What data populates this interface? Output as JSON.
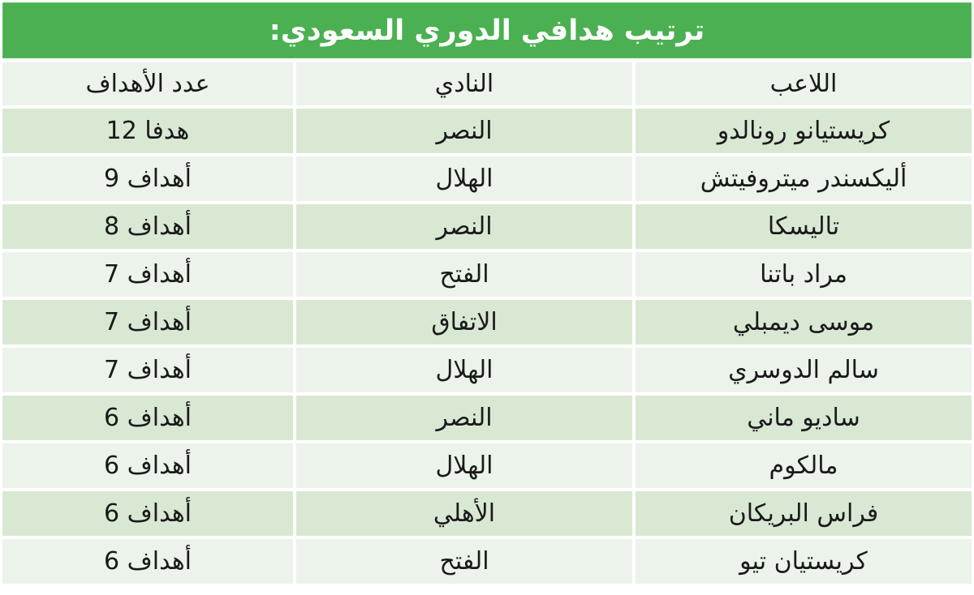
{
  "title": "ترتيب هدافي الدوري السعودي:",
  "colors": {
    "header_green": "#4bb051",
    "row_light": "#ebf3ea",
    "row_dark": "#d9e8d3",
    "title_text": "#ffffff",
    "cell_text": "#1a1a1a"
  },
  "table": {
    "headers": [
      "اللاعب",
      "النادي",
      "عدد الأهداف"
    ],
    "rows": [
      {
        "player": "كريستيانو رونالدو",
        "club": "النصر",
        "goals": "12 هدفا"
      },
      {
        "player": "أليكسندر ميتروفيتش",
        "club": "الهلال",
        "goals": "9 أهداف"
      },
      {
        "player": "تاليسكا",
        "club": "النصر",
        "goals": "8 أهداف"
      },
      {
        "player": "مراد باتنا",
        "club": "الفتح",
        "goals": "7 أهداف"
      },
      {
        "player": "موسى ديمبلي",
        "club": "الاتفاق",
        "goals": "7 أهداف"
      },
      {
        "player": "سالم الدوسري",
        "club": "الهلال",
        "goals": "7 أهداف"
      },
      {
        "player": "ساديو ماني",
        "club": "النصر",
        "goals": "6 أهداف"
      },
      {
        "player": "مالكوم",
        "club": "الهلال",
        "goals": "6 أهداف"
      },
      {
        "player": "فراس البريكان",
        "club": "الأهلي",
        "goals": "6 أهداف"
      },
      {
        "player": "كريستيان تيو",
        "club": "الفتح",
        "goals": "6 أهداف"
      }
    ]
  }
}
